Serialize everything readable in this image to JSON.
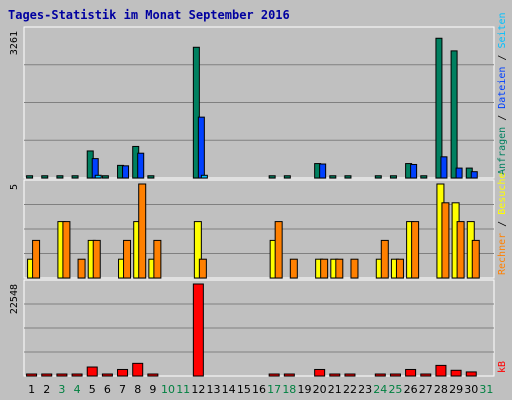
{
  "chart_data": [
    {
      "type": "bar",
      "title": "Tages-Statistik im Monat September 2016",
      "panel": "top",
      "ymax_label": "3261",
      "ylim": [
        0,
        3261
      ],
      "legend": [
        {
          "name": "Anfragen",
          "color": "#008060"
        },
        {
          "name": "Dateien",
          "color": "#0040ff"
        },
        {
          "name": "Seiten",
          "color": "#00c0ff"
        }
      ],
      "categories": [
        "1",
        "2",
        "3",
        "4",
        "5",
        "6",
        "7",
        "8",
        "9",
        "10",
        "11",
        "12",
        "13",
        "14",
        "15",
        "16",
        "17",
        "18",
        "19",
        "20",
        "21",
        "22",
        "23",
        "24",
        "25",
        "26",
        "27",
        "28",
        "29",
        "30",
        "31"
      ],
      "series": [
        {
          "name": "Anfragen",
          "values": [
            50,
            50,
            50,
            50,
            600,
            50,
            280,
            700,
            50,
            0,
            0,
            2900,
            0,
            0,
            0,
            0,
            50,
            50,
            0,
            320,
            50,
            50,
            0,
            50,
            50,
            320,
            50,
            3100,
            2820,
            220,
            0
          ]
        },
        {
          "name": "Dateien",
          "values": [
            0,
            0,
            0,
            0,
            430,
            0,
            270,
            550,
            0,
            0,
            0,
            1350,
            0,
            0,
            0,
            0,
            0,
            0,
            0,
            310,
            0,
            0,
            0,
            0,
            0,
            300,
            0,
            470,
            220,
            140,
            0
          ]
        },
        {
          "name": "Seiten",
          "values": [
            0,
            0,
            0,
            0,
            60,
            0,
            0,
            0,
            0,
            0,
            0,
            60,
            0,
            0,
            0,
            0,
            0,
            0,
            0,
            0,
            0,
            0,
            0,
            0,
            0,
            0,
            0,
            0,
            0,
            0,
            0
          ]
        }
      ]
    },
    {
      "type": "bar",
      "panel": "middle",
      "ymax_label": "5",
      "ylim": [
        0,
        5
      ],
      "legend": [
        {
          "name": "Rechner",
          "color": "#ff8000"
        },
        {
          "name": "Besuche",
          "color": "#ffff00"
        }
      ],
      "categories": [
        "1",
        "2",
        "3",
        "4",
        "5",
        "6",
        "7",
        "8",
        "9",
        "10",
        "11",
        "12",
        "13",
        "14",
        "15",
        "16",
        "17",
        "18",
        "19",
        "20",
        "21",
        "22",
        "23",
        "24",
        "25",
        "26",
        "27",
        "28",
        "29",
        "30",
        "31"
      ],
      "series": [
        {
          "name": "Besuche",
          "values": [
            1,
            0,
            3,
            0,
            2,
            0,
            1,
            3,
            1,
            0,
            0,
            3,
            0,
            0,
            0,
            0,
            2,
            0,
            0,
            1,
            1,
            0,
            0,
            1,
            1,
            3,
            0,
            5,
            4,
            3,
            0
          ]
        },
        {
          "name": "Rechner",
          "values": [
            2,
            0,
            3,
            1,
            2,
            0,
            2,
            5,
            2,
            0,
            0,
            1,
            0,
            0,
            0,
            0,
            3,
            1,
            0,
            1,
            1,
            1,
            0,
            2,
            1,
            3,
            0,
            4,
            3,
            2,
            0
          ]
        }
      ]
    },
    {
      "type": "bar",
      "panel": "bottom",
      "ymax_label": "22548",
      "ylim": [
        0,
        22548
      ],
      "legend": [
        {
          "name": "kB",
          "color": "#ff0000"
        }
      ],
      "categories": [
        "1",
        "2",
        "3",
        "4",
        "5",
        "6",
        "7",
        "8",
        "9",
        "10",
        "11",
        "12",
        "13",
        "14",
        "15",
        "16",
        "17",
        "18",
        "19",
        "20",
        "21",
        "22",
        "23",
        "24",
        "25",
        "26",
        "27",
        "28",
        "29",
        "30",
        "31"
      ],
      "series": [
        {
          "name": "kB",
          "values": [
            80,
            80,
            80,
            80,
            2200,
            80,
            1600,
            3100,
            80,
            0,
            0,
            22548,
            0,
            0,
            0,
            0,
            80,
            80,
            0,
            1600,
            80,
            80,
            0,
            80,
            80,
            1600,
            80,
            2600,
            1400,
            1000,
            0
          ]
        }
      ]
    }
  ],
  "xaxis": {
    "labels": [
      "1",
      "2",
      "3",
      "4",
      "5",
      "6",
      "7",
      "8",
      "9",
      "10",
      "11",
      "12",
      "13",
      "14",
      "15",
      "16",
      "17",
      "18",
      "19",
      "20",
      "21",
      "22",
      "23",
      "24",
      "25",
      "26",
      "27",
      "28",
      "29",
      "30",
      "31"
    ],
    "weekend_days": [
      3,
      4,
      10,
      11,
      17,
      18,
      24,
      25,
      31
    ],
    "weekday_color": "#000000",
    "weekend_color": "#008040"
  },
  "colors": {
    "background": "#c0c0c0",
    "plot_background": "#c0c0c0",
    "grid": "#808080",
    "title": "#0000a0",
    "bar_outline": "#000000"
  }
}
